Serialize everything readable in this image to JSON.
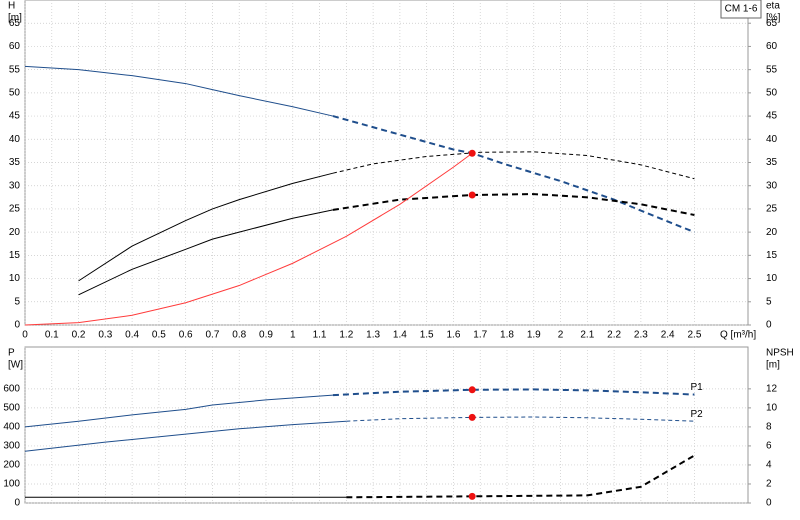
{
  "chart_data": [
    {
      "type": "line",
      "title": "CM 1-6",
      "ylabel": [
        "H",
        "[m]"
      ],
      "y2label": [
        "eta",
        "[%]"
      ],
      "xlabel": "Q [m³/h]",
      "xlim": [
        0,
        2.7
      ],
      "xticks": [
        0,
        0.1,
        0.2,
        0.3,
        0.4,
        0.5,
        0.6,
        0.7,
        0.8,
        0.9,
        1.0,
        1.1,
        1.2,
        1.3,
        1.4,
        1.5,
        1.6,
        1.7,
        1.8,
        1.9,
        2.0,
        2.1,
        2.2,
        2.3,
        2.4,
        2.5
      ],
      "xtick_labels": true,
      "ylim": [
        0,
        70
      ],
      "yticks": [
        0,
        5,
        10,
        15,
        20,
        25,
        30,
        35,
        40,
        45,
        50,
        55,
        60,
        65
      ],
      "y2lim": [
        0,
        70
      ],
      "y2ticks": [
        0,
        5,
        10,
        15,
        20,
        25,
        30,
        35,
        40,
        45,
        50,
        55,
        60,
        65
      ],
      "grid": true,
      "series": [
        {
          "color": "#1f4e8c",
          "dashed": false,
          "x": [
            0,
            0.2,
            0.4,
            0.6,
            0.7,
            0.8,
            1.0,
            1.15
          ],
          "values": [
            55.7,
            55,
            53.7,
            52,
            50.7,
            49.4,
            47,
            45
          ]
        },
        {
          "color": "#1f4e8c",
          "dashed": true,
          "x": [
            1.15,
            1.4,
            1.6,
            1.67,
            1.8,
            2.0,
            2.2,
            2.4,
            2.5
          ],
          "values": [
            45,
            41,
            37.8,
            37,
            34.5,
            31,
            27,
            22.3,
            20
          ]
        },
        {
          "color": "#000000",
          "dashed": false,
          "axis": "y2",
          "x": [
            0.2,
            0.4,
            0.6,
            0.7,
            0.8,
            1.0,
            1.15
          ],
          "values": [
            9.5,
            17,
            22.5,
            25,
            27,
            30.5,
            32.7
          ]
        },
        {
          "color": "#000000",
          "dashed": true,
          "thin": true,
          "axis": "y2",
          "x": [
            1.15,
            1.3,
            1.5,
            1.7,
            1.9,
            2.1,
            2.3,
            2.5
          ],
          "values": [
            32.7,
            34.7,
            36.3,
            37.2,
            37.3,
            36.5,
            34.5,
            31.5
          ]
        },
        {
          "color": "#000000",
          "dashed": false,
          "axis": "y2",
          "x": [
            0.2,
            0.4,
            0.6,
            0.7,
            0.8,
            1.0,
            1.15
          ],
          "values": [
            6.5,
            12,
            16.3,
            18.5,
            20,
            23,
            24.8
          ]
        },
        {
          "color": "#000000",
          "dashed": true,
          "axis": "y2",
          "x": [
            1.15,
            1.4,
            1.67,
            1.9,
            2.1,
            2.3,
            2.5
          ],
          "values": [
            24.8,
            27,
            28,
            28.2,
            27.5,
            26,
            23.7
          ]
        },
        {
          "color": "#ff3b3b",
          "dashed": false,
          "x": [
            0,
            0.2,
            0.4,
            0.6,
            0.8,
            1.0,
            1.2,
            1.4,
            1.6,
            1.67
          ],
          "values": [
            0,
            0.5,
            2.1,
            4.8,
            8.5,
            13.3,
            19.1,
            26,
            34,
            37
          ]
        },
        {
          "color": "#ee1111",
          "marker": true,
          "x": [
            1.67,
            1.67
          ],
          "values": [
            37,
            28
          ]
        }
      ]
    },
    {
      "type": "line",
      "ylabel": [
        "P",
        "[W]"
      ],
      "y2label": [
        "NPSH",
        "[m]"
      ],
      "xlim": [
        0,
        2.7
      ],
      "xticks": [
        0,
        0.1,
        0.2,
        0.3,
        0.4,
        0.5,
        0.6,
        0.7,
        0.8,
        0.9,
        1.0,
        1.1,
        1.2,
        1.3,
        1.4,
        1.5,
        1.6,
        1.7,
        1.8,
        1.9,
        2.0,
        2.1,
        2.2,
        2.3,
        2.4,
        2.5
      ],
      "xtick_labels": false,
      "ylim": [
        0,
        820
      ],
      "yticks": [
        0,
        100,
        200,
        300,
        400,
        500,
        600
      ],
      "y2lim": [
        0,
        16.4
      ],
      "y2ticks": [
        0,
        2,
        4,
        6,
        8,
        10,
        12
      ],
      "grid": true,
      "series": [
        {
          "color": "#1f4e8c",
          "dashed": false,
          "x": [
            0,
            0.2,
            0.4,
            0.6,
            0.7,
            0.9,
            1.15
          ],
          "values": [
            400,
            430,
            463,
            492,
            515,
            542,
            567
          ]
        },
        {
          "name": "P1",
          "color": "#1f4e8c",
          "dashed": true,
          "x": [
            1.15,
            1.4,
            1.67,
            1.9,
            2.1,
            2.3,
            2.5
          ],
          "values": [
            567,
            585,
            595,
            597,
            592,
            582,
            570
          ]
        },
        {
          "color": "#1f4e8c",
          "dashed": false,
          "x": [
            0,
            0.3,
            0.6,
            0.8,
            1.0,
            1.2
          ],
          "values": [
            272,
            320,
            362,
            390,
            412,
            430
          ]
        },
        {
          "name": "P2",
          "color": "#1f4e8c",
          "dashed": true,
          "thin": true,
          "x": [
            1.2,
            1.4,
            1.67,
            1.9,
            2.1,
            2.3,
            2.5
          ],
          "values": [
            430,
            443,
            450,
            452,
            448,
            440,
            430
          ]
        },
        {
          "color": "#000000",
          "dashed": false,
          "axis": "y2",
          "x": [
            0,
            0.7,
            1.2
          ],
          "values": [
            0.6,
            0.6,
            0.6
          ]
        },
        {
          "color": "#000000",
          "dashed": true,
          "axis": "y2",
          "x": [
            1.2,
            1.67,
            2.1,
            2.3,
            2.5
          ],
          "values": [
            0.6,
            0.7,
            0.8,
            1.7,
            5
          ]
        },
        {
          "color": "#ee1111",
          "marker": true,
          "x": [
            1.67,
            1.67
          ],
          "values": [
            595,
            450
          ]
        },
        {
          "color": "#ee1111",
          "marker": true,
          "axis": "y2",
          "x": [
            1.67
          ],
          "values": [
            0.7
          ]
        }
      ]
    }
  ]
}
